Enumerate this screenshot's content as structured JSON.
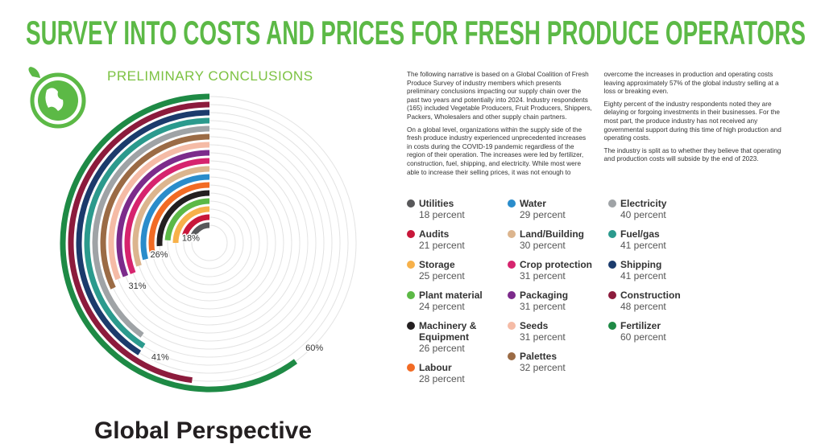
{
  "chart_data": {
    "type": "radial_bar",
    "title": "SURVEY INTO COSTS AND PRICES FOR FRESH PRODUCE OPERATORS",
    "subtitle": "PRELIMINARY CONCLUSIONS",
    "footer_title": "Global Perspective",
    "narrative": [
      "The following narrative is based on a Global Coalition of Fresh Produce Survey of industry members which presents preliminary conclusions impacting our supply chain over the past two years and potentially into 2024. Industry respondents (165) included Vegetable Producers, Fruit Producers, Shippers, Packers, Wholesalers and other supply chain partners.",
      "On a global level, organizations within the supply side of the fresh produce industry experienced unprecedented increases in costs during the COVID-19 pandemic regardless of the region of their operation. The increases were led by fertilizer, construction, fuel, shipping, and electricity. While most were able to increase their selling prices, it was not enough to overcome the increases in production and operating costs leaving approximately 57% of the global industry selling at a loss or breaking even.",
      "Eighty percent of the industry respondents noted they are delaying or forgoing investments in their businesses. For the most part, the produce industry has not received any governmental support during this time of high production and operating costs.",
      "The industry is split as to whether they believe that operating and production costs will subside by the end of 2023."
    ],
    "categories": [
      "Utilities",
      "Audits",
      "Storage",
      "Plant material",
      "Machinery & Equipment",
      "Labour",
      "Water",
      "Land/Building",
      "Crop protection",
      "Packaging",
      "Seeds",
      "Palettes",
      "Electricity",
      "Fuel/gas",
      "Shipping",
      "Construction",
      "Fertilizer"
    ],
    "values": [
      18,
      21,
      25,
      24,
      26,
      28,
      29,
      30,
      31,
      31,
      31,
      32,
      40,
      41,
      41,
      48,
      60
    ],
    "value_labels": [
      "18 percent",
      "21 percent",
      "25 percent",
      "24 percent",
      "26 percent",
      "28 percent",
      "29 percent",
      "30 percent",
      "31 percent",
      "31 percent",
      "31 percent",
      "32 percent",
      "40 percent",
      "41 percent",
      "41 percent",
      "48 percent",
      "60 percent"
    ],
    "colors": [
      "#58585a",
      "#c8173a",
      "#f7b14a",
      "#5cb946",
      "#231f20",
      "#f26b24",
      "#2a8ccb",
      "#dcb58e",
      "#d6246e",
      "#7c2b8b",
      "#f5bba6",
      "#9b6b45",
      "#9fa3a6",
      "#2b9a8d",
      "#1b3b6c",
      "#8c1b3c",
      "#1e8a45"
    ],
    "ylim": [
      0,
      100
    ],
    "annotations": [
      {
        "value": 18,
        "label": "18%"
      },
      {
        "value": 26,
        "label": "26%"
      },
      {
        "value": 31,
        "label": "31%"
      },
      {
        "value": 41,
        "label": "41%"
      },
      {
        "value": 60,
        "label": "60%"
      }
    ]
  }
}
